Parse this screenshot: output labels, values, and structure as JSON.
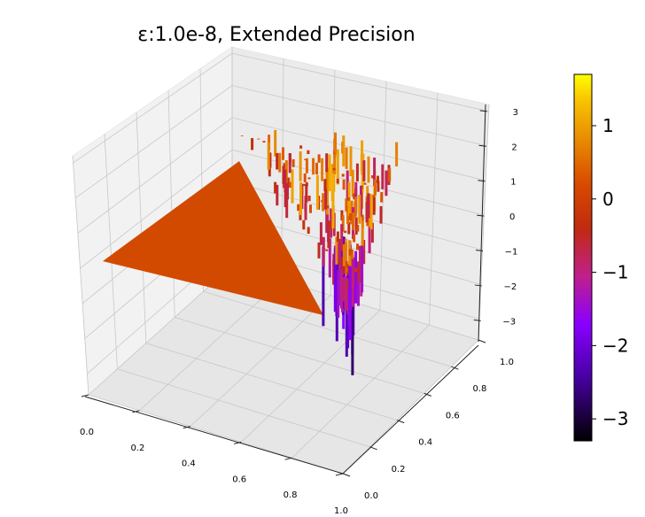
{
  "chart_data": {
    "type": "surface3d",
    "title": "ε:1.0e-8, Extended Precision",
    "xlabel": "",
    "ylabel": "",
    "zlabel": "",
    "x_ticks": [
      "0.0",
      "0.2",
      "0.4",
      "0.6",
      "0.8",
      "1.0"
    ],
    "y_ticks": [
      "0.0",
      "0.2",
      "0.4",
      "0.6",
      "0.8",
      "1.0"
    ],
    "z_ticks": [
      "3",
      "2",
      "1",
      "0",
      "−1",
      "−2",
      "−3"
    ],
    "xlim": [
      0,
      1
    ],
    "ylim": [
      0,
      1
    ],
    "zlim": [
      -3.6,
      3.2
    ],
    "grid": true,
    "colormap": "gnuplot",
    "colorbar": {
      "ticks": [
        "1",
        "0",
        "−1",
        "−2",
        "−3"
      ],
      "range": [
        -3.3,
        1.7
      ]
    },
    "surface": {
      "description_values": {
        "flat_region_value": 0,
        "flat_region": "y <= x (lower triangle)",
        "noisy_region": "y > x, amplitude grows toward x=1,y=1",
        "min_value": -3.3,
        "max_value": 1.7
      }
    },
    "colors": {
      "flat": "#d24a00",
      "cmap_stops": [
        "#000000",
        "#7a00ff",
        "#c0208a",
        "#c23000",
        "#e07000",
        "#f8c000",
        "#ffff00"
      ]
    }
  }
}
